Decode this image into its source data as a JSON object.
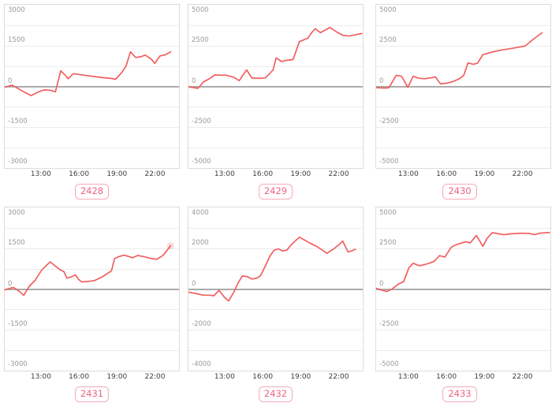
{
  "style": {
    "line_color": "#f25f5f",
    "grid_color": "#ececec",
    "zero_line_color": "#ababab",
    "plot_border_color": "#dcdcdc",
    "y_tick_color": "#999999",
    "x_tick_color": "#3d3d3d",
    "badge_text_color": "#ee6482",
    "badge_border_color": "#f4aaba"
  },
  "axis": {
    "x_ticks": [
      "13:00",
      "16:00",
      "19:00",
      "22:00"
    ],
    "x_range_hours": [
      10.083,
      23.833
    ],
    "grid": "horizontal-only",
    "minor_divisions": 8
  },
  "chart_data": [
    {
      "type": "line",
      "label": "2428",
      "y_ticks": [
        "3000",
        "1500",
        "0",
        "-1500",
        "-3000"
      ],
      "ylim": [
        -3000,
        3000
      ],
      "end_marker": false,
      "points": [
        [
          "10:05",
          -30
        ],
        [
          "10:40",
          40
        ],
        [
          "11:00",
          -40
        ],
        [
          "11:30",
          -180
        ],
        [
          "12:10",
          -340
        ],
        [
          "12:40",
          -220
        ],
        [
          "13:10",
          -130
        ],
        [
          "13:40",
          -140
        ],
        [
          "14:05",
          -200
        ],
        [
          "14:30",
          570
        ],
        [
          "14:50",
          420
        ],
        [
          "15:05",
          280
        ],
        [
          "15:30",
          470
        ],
        [
          "15:55",
          440
        ],
        [
          "16:30",
          400
        ],
        [
          "17:10",
          360
        ],
        [
          "17:50",
          320
        ],
        [
          "18:30",
          290
        ],
        [
          "18:50",
          260
        ],
        [
          "19:20",
          520
        ],
        [
          "19:40",
          760
        ],
        [
          "20:00",
          1270
        ],
        [
          "20:25",
          1060
        ],
        [
          "20:50",
          1090
        ],
        [
          "21:10",
          1150
        ],
        [
          "21:40",
          990
        ],
        [
          "21:55",
          840
        ],
        [
          "22:20",
          1120
        ],
        [
          "22:45",
          1160
        ],
        [
          "23:10",
          1270
        ]
      ]
    },
    {
      "type": "line",
      "label": "2429",
      "y_ticks": [
        "5000",
        "2500",
        "0",
        "-2500",
        "-5000"
      ],
      "ylim": [
        -5000,
        5000
      ],
      "end_marker": false,
      "points": [
        [
          "10:05",
          -30
        ],
        [
          "10:50",
          -120
        ],
        [
          "11:15",
          260
        ],
        [
          "11:45",
          480
        ],
        [
          "12:10",
          700
        ],
        [
          "12:40",
          680
        ],
        [
          "13:00",
          690
        ],
        [
          "13:40",
          560
        ],
        [
          "14:05",
          350
        ],
        [
          "14:40",
          1010
        ],
        [
          "15:05",
          510
        ],
        [
          "15:40",
          490
        ],
        [
          "16:10",
          520
        ],
        [
          "16:45",
          1000
        ],
        [
          "17:00",
          1750
        ],
        [
          "17:25",
          1520
        ],
        [
          "17:50",
          1600
        ],
        [
          "18:20",
          1640
        ],
        [
          "18:50",
          2740
        ],
        [
          "19:30",
          2950
        ],
        [
          "19:50",
          3320
        ],
        [
          "20:05",
          3530
        ],
        [
          "20:30",
          3290
        ],
        [
          "21:15",
          3610
        ],
        [
          "21:45",
          3350
        ],
        [
          "22:15",
          3130
        ],
        [
          "22:45",
          3080
        ],
        [
          "23:45",
          3240
        ]
      ]
    },
    {
      "type": "line",
      "label": "2430",
      "y_ticks": [
        "5000",
        "2500",
        "0",
        "-2500",
        "-5000"
      ],
      "ylim": [
        -5000,
        5000
      ],
      "end_marker": false,
      "points": [
        [
          "10:05",
          -80
        ],
        [
          "10:45",
          -100
        ],
        [
          "11:05",
          -90
        ],
        [
          "11:40",
          680
        ],
        [
          "12:05",
          620
        ],
        [
          "12:35",
          -60
        ],
        [
          "13:00",
          620
        ],
        [
          "13:25",
          500
        ],
        [
          "13:55",
          470
        ],
        [
          "14:25",
          520
        ],
        [
          "14:45",
          580
        ],
        [
          "15:10",
          150
        ],
        [
          "15:40",
          200
        ],
        [
          "16:10",
          300
        ],
        [
          "16:40",
          480
        ],
        [
          "17:00",
          680
        ],
        [
          "17:20",
          1440
        ],
        [
          "17:45",
          1350
        ],
        [
          "18:05",
          1420
        ],
        [
          "18:30",
          1940
        ],
        [
          "19:00",
          2050
        ],
        [
          "19:30",
          2150
        ],
        [
          "20:00",
          2230
        ],
        [
          "20:40",
          2310
        ],
        [
          "21:20",
          2400
        ],
        [
          "21:50",
          2470
        ],
        [
          "22:30",
          2900
        ],
        [
          "23:10",
          3280
        ]
      ]
    },
    {
      "type": "line",
      "label": "2431",
      "y_ticks": [
        "3000",
        "1500",
        "0",
        "-1500",
        "-3000"
      ],
      "ylim": [
        -3000,
        3000
      ],
      "end_marker": true,
      "points": [
        [
          "10:05",
          -30
        ],
        [
          "10:45",
          60
        ],
        [
          "11:10",
          -60
        ],
        [
          "11:35",
          -230
        ],
        [
          "12:00",
          90
        ],
        [
          "12:30",
          330
        ],
        [
          "13:00",
          700
        ],
        [
          "13:40",
          1000
        ],
        [
          "14:25",
          715
        ],
        [
          "14:45",
          640
        ],
        [
          "15:00",
          400
        ],
        [
          "15:20",
          450
        ],
        [
          "15:40",
          520
        ],
        [
          "15:55",
          350
        ],
        [
          "16:10",
          260
        ],
        [
          "16:40",
          280
        ],
        [
          "17:10",
          310
        ],
        [
          "17:50",
          465
        ],
        [
          "18:30",
          670
        ],
        [
          "18:45",
          1120
        ],
        [
          "19:05",
          1190
        ],
        [
          "19:30",
          1250
        ],
        [
          "20:10",
          1150
        ],
        [
          "20:35",
          1235
        ],
        [
          "21:10",
          1180
        ],
        [
          "21:40",
          1120
        ],
        [
          "22:05",
          1090
        ],
        [
          "22:35",
          1240
        ],
        [
          "23:10",
          1590
        ]
      ]
    },
    {
      "type": "line",
      "label": "2432",
      "y_ticks": [
        "4000",
        "2000",
        "0",
        "-2000",
        "-4000"
      ],
      "ylim": [
        -4000,
        4000
      ],
      "end_marker": false,
      "points": [
        [
          "10:05",
          -150
        ],
        [
          "10:45",
          -230
        ],
        [
          "11:15",
          -300
        ],
        [
          "11:45",
          -300
        ],
        [
          "12:05",
          -330
        ],
        [
          "12:30",
          -60
        ],
        [
          "12:55",
          -400
        ],
        [
          "13:15",
          -580
        ],
        [
          "13:40",
          -150
        ],
        [
          "14:00",
          300
        ],
        [
          "14:20",
          640
        ],
        [
          "14:45",
          600
        ],
        [
          "15:05",
          490
        ],
        [
          "15:25",
          520
        ],
        [
          "15:45",
          640
        ],
        [
          "16:10",
          1150
        ],
        [
          "16:30",
          1600
        ],
        [
          "16:50",
          1900
        ],
        [
          "17:10",
          1970
        ],
        [
          "17:30",
          1870
        ],
        [
          "17:50",
          1900
        ],
        [
          "18:10",
          2150
        ],
        [
          "18:30",
          2350
        ],
        [
          "18:50",
          2540
        ],
        [
          "19:10",
          2430
        ],
        [
          "19:40",
          2250
        ],
        [
          "20:10",
          2100
        ],
        [
          "20:40",
          1900
        ],
        [
          "21:00",
          1750
        ],
        [
          "21:30",
          1950
        ],
        [
          "21:55",
          2150
        ],
        [
          "22:15",
          2350
        ],
        [
          "22:40",
          1820
        ],
        [
          "23:00",
          1880
        ],
        [
          "23:15",
          1950
        ]
      ]
    },
    {
      "type": "line",
      "label": "2433",
      "y_ticks": [
        "5000",
        "2500",
        "0",
        "-2500",
        "-5000"
      ],
      "ylim": [
        -5000,
        5000
      ],
      "end_marker": false,
      "points": [
        [
          "10:05",
          50
        ],
        [
          "10:30",
          -60
        ],
        [
          "10:55",
          -150
        ],
        [
          "11:20",
          0
        ],
        [
          "11:50",
          300
        ],
        [
          "12:15",
          450
        ],
        [
          "12:40",
          1300
        ],
        [
          "13:00",
          1580
        ],
        [
          "13:30",
          1430
        ],
        [
          "13:55",
          1500
        ],
        [
          "14:15",
          1580
        ],
        [
          "14:40",
          1700
        ],
        [
          "15:05",
          2050
        ],
        [
          "15:30",
          1950
        ],
        [
          "16:00",
          2550
        ],
        [
          "16:20",
          2700
        ],
        [
          "16:50",
          2820
        ],
        [
          "17:10",
          2900
        ],
        [
          "17:30",
          2820
        ],
        [
          "18:00",
          3280
        ],
        [
          "18:30",
          2620
        ],
        [
          "18:50",
          3100
        ],
        [
          "19:15",
          3460
        ],
        [
          "19:45",
          3380
        ],
        [
          "20:10",
          3330
        ],
        [
          "20:40",
          3380
        ],
        [
          "21:10",
          3400
        ],
        [
          "21:40",
          3420
        ],
        [
          "22:10",
          3400
        ],
        [
          "22:35",
          3330
        ],
        [
          "23:00",
          3420
        ],
        [
          "23:45",
          3460
        ]
      ]
    }
  ]
}
